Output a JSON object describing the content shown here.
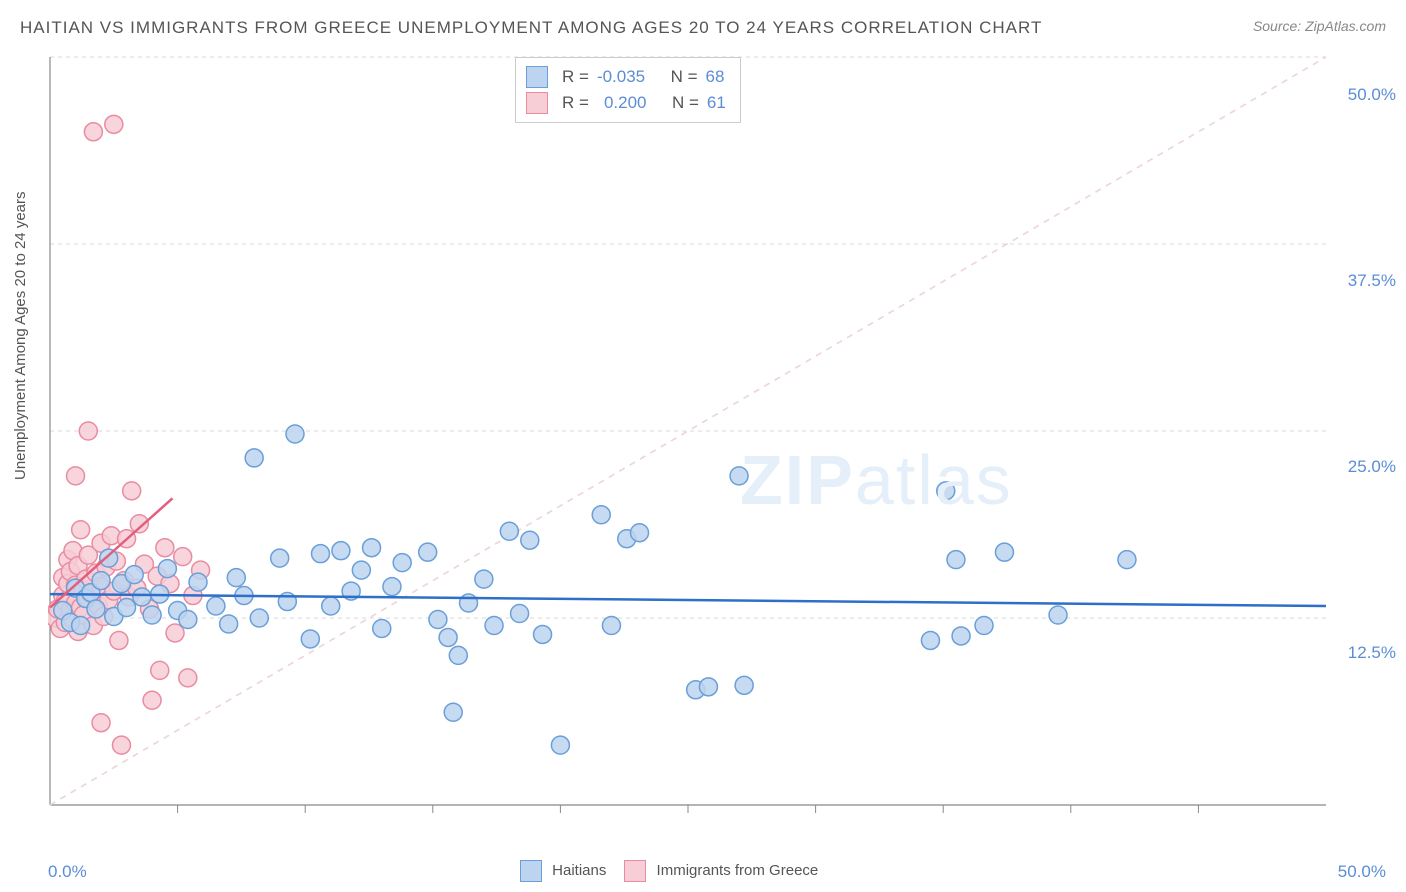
{
  "title": "HAITIAN VS IMMIGRANTS FROM GREECE UNEMPLOYMENT AMONG AGES 20 TO 24 YEARS CORRELATION CHART",
  "source": "Source: ZipAtlas.com",
  "ylabel": "Unemployment Among Ages 20 to 24 years",
  "watermark_a": "ZIP",
  "watermark_b": "atlas",
  "chart": {
    "type": "scatter",
    "xlim": [
      0,
      50
    ],
    "ylim": [
      0,
      50
    ],
    "ytick_labels": [
      "50.0%",
      "37.5%",
      "25.0%",
      "12.5%"
    ],
    "ytick_values": [
      50,
      37.5,
      25,
      12.5
    ],
    "xtick_left": "0.0%",
    "xtick_right": "50.0%",
    "xtick_minor": [
      5,
      10,
      15,
      20,
      25,
      30,
      35,
      40,
      45
    ],
    "grid_color": "#d8d8d8",
    "axis_color": "#888888",
    "background": "#ffffff",
    "series": [
      {
        "name": "Haitians",
        "color_fill": "#bcd4ef",
        "color_stroke": "#6a9fd8",
        "marker_r": 9,
        "regression": {
          "y1": 14.1,
          "y2": 13.3,
          "color": "#2e6fc9",
          "width": 2.5
        },
        "reference_dash": {
          "color": "#cfcfcf"
        },
        "R": "-0.035",
        "N": "68",
        "points": [
          [
            0.5,
            13.0
          ],
          [
            0.8,
            12.2
          ],
          [
            1.0,
            14.5
          ],
          [
            1.2,
            12.0
          ],
          [
            1.4,
            13.8
          ],
          [
            1.6,
            14.2
          ],
          [
            1.8,
            13.1
          ],
          [
            2.0,
            15.0
          ],
          [
            2.3,
            16.5
          ],
          [
            2.5,
            12.6
          ],
          [
            2.8,
            14.8
          ],
          [
            3.0,
            13.2
          ],
          [
            3.3,
            15.4
          ],
          [
            3.6,
            13.9
          ],
          [
            4.0,
            12.7
          ],
          [
            4.3,
            14.1
          ],
          [
            4.6,
            15.8
          ],
          [
            5.0,
            13.0
          ],
          [
            5.4,
            12.4
          ],
          [
            5.8,
            14.9
          ],
          [
            6.5,
            13.3
          ],
          [
            7.0,
            12.1
          ],
          [
            7.3,
            15.2
          ],
          [
            7.6,
            14.0
          ],
          [
            8.0,
            23.2
          ],
          [
            8.2,
            12.5
          ],
          [
            9.0,
            16.5
          ],
          [
            9.3,
            13.6
          ],
          [
            9.6,
            24.8
          ],
          [
            10.2,
            11.1
          ],
          [
            10.6,
            16.8
          ],
          [
            11.0,
            13.3
          ],
          [
            11.4,
            17.0
          ],
          [
            11.8,
            14.3
          ],
          [
            12.2,
            15.7
          ],
          [
            12.6,
            17.2
          ],
          [
            13.0,
            11.8
          ],
          [
            13.4,
            14.6
          ],
          [
            13.8,
            16.2
          ],
          [
            14.8,
            16.9
          ],
          [
            15.2,
            12.4
          ],
          [
            15.6,
            11.2
          ],
          [
            15.8,
            6.2
          ],
          [
            16.0,
            10.0
          ],
          [
            16.4,
            13.5
          ],
          [
            17.0,
            15.1
          ],
          [
            17.4,
            12.0
          ],
          [
            18.0,
            18.3
          ],
          [
            18.4,
            12.8
          ],
          [
            18.8,
            17.7
          ],
          [
            19.3,
            11.4
          ],
          [
            20.0,
            4.0
          ],
          [
            21.6,
            19.4
          ],
          [
            22.0,
            12.0
          ],
          [
            22.6,
            17.8
          ],
          [
            23.1,
            18.2
          ],
          [
            25.3,
            7.7
          ],
          [
            25.8,
            7.9
          ],
          [
            27.0,
            22.0
          ],
          [
            27.2,
            8.0
          ],
          [
            34.5,
            11.0
          ],
          [
            35.1,
            21.0
          ],
          [
            35.5,
            16.4
          ],
          [
            35.7,
            11.3
          ],
          [
            36.6,
            12.0
          ],
          [
            37.4,
            16.9
          ],
          [
            39.5,
            12.7
          ],
          [
            42.2,
            16.4
          ]
        ]
      },
      {
        "name": "Immigrants from Greece",
        "color_fill": "#f7cdd6",
        "color_stroke": "#e98ca1",
        "marker_r": 9,
        "regression": {
          "x1": 0,
          "y1": 13.2,
          "x2": 4.8,
          "y2": 20.5,
          "color": "#e15f7c",
          "width": 2.5
        },
        "reference_dash": {
          "color": "#efd6db"
        },
        "R": "0.200",
        "N": "61",
        "points": [
          [
            0.2,
            12.5
          ],
          [
            0.3,
            13.1
          ],
          [
            0.4,
            11.8
          ],
          [
            0.5,
            14.0
          ],
          [
            0.5,
            15.2
          ],
          [
            0.6,
            12.2
          ],
          [
            0.6,
            13.6
          ],
          [
            0.7,
            14.8
          ],
          [
            0.7,
            16.4
          ],
          [
            0.8,
            13.0
          ],
          [
            0.8,
            15.6
          ],
          [
            0.9,
            12.4
          ],
          [
            0.9,
            17.0
          ],
          [
            1.0,
            13.5
          ],
          [
            1.0,
            14.7
          ],
          [
            1.1,
            11.6
          ],
          [
            1.1,
            16.0
          ],
          [
            1.2,
            13.2
          ],
          [
            1.2,
            18.4
          ],
          [
            1.3,
            14.4
          ],
          [
            1.3,
            12.7
          ],
          [
            1.4,
            15.1
          ],
          [
            1.5,
            13.8
          ],
          [
            1.5,
            16.7
          ],
          [
            1.6,
            14.1
          ],
          [
            1.7,
            12.0
          ],
          [
            1.8,
            15.5
          ],
          [
            1.9,
            13.3
          ],
          [
            2.0,
            14.6
          ],
          [
            2.0,
            17.5
          ],
          [
            2.1,
            12.6
          ],
          [
            2.2,
            15.9
          ],
          [
            2.3,
            13.7
          ],
          [
            2.4,
            18.0
          ],
          [
            2.5,
            14.3
          ],
          [
            2.6,
            16.3
          ],
          [
            2.7,
            11.0
          ],
          [
            2.8,
            4.0
          ],
          [
            2.9,
            15.0
          ],
          [
            3.0,
            17.8
          ],
          [
            3.1,
            13.9
          ],
          [
            3.2,
            21.0
          ],
          [
            3.4,
            14.5
          ],
          [
            3.5,
            18.8
          ],
          [
            3.7,
            16.1
          ],
          [
            3.9,
            13.1
          ],
          [
            4.0,
            7.0
          ],
          [
            4.2,
            15.3
          ],
          [
            4.3,
            9.0
          ],
          [
            4.5,
            17.2
          ],
          [
            4.7,
            14.8
          ],
          [
            4.9,
            11.5
          ],
          [
            5.2,
            16.6
          ],
          [
            5.4,
            8.5
          ],
          [
            5.6,
            14.0
          ],
          [
            5.9,
            15.7
          ],
          [
            1.0,
            22.0
          ],
          [
            1.5,
            25.0
          ],
          [
            1.7,
            45.0
          ],
          [
            2.5,
            45.5
          ],
          [
            2.0,
            5.5
          ]
        ]
      }
    ]
  },
  "legend": {
    "series1": "Haitians",
    "series2": "Immigrants from Greece"
  },
  "inset": {
    "r_label": "R =",
    "n_label": "N ="
  }
}
